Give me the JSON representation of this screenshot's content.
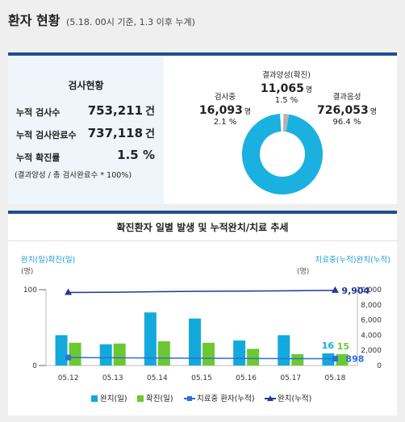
{
  "header": {
    "title": "환자 현황",
    "subtitle": "(5.18. 00시 기준, 1.3 이후 누계)"
  },
  "test_status": {
    "title": "검사현황",
    "rows": [
      {
        "label": "누적 검사수",
        "value": "753,211",
        "unit": "건"
      },
      {
        "label": "누적 검사완료수",
        "value": "737,118",
        "unit": "건"
      },
      {
        "label": "누적 확진률",
        "value": "1.5 %",
        "unit": ""
      }
    ],
    "note": "(결과양성 / 총 검사완료수 * 100%)"
  },
  "pie": {
    "colors": {
      "negative": "#1ab0e0",
      "testing": "#b3b3b3",
      "positive": "#ffffff"
    },
    "slices": [
      {
        "key": "testing",
        "label": "검사중",
        "value": "16,093",
        "unit": "명",
        "percent": 2.1,
        "percent_text": "2.1 %"
      },
      {
        "key": "positive",
        "label": "결과양성(확진)",
        "value": "11,065",
        "unit": "명",
        "percent": 1.5,
        "percent_text": "1.5 %"
      },
      {
        "key": "negative",
        "label": "결과음성",
        "value": "726,053",
        "unit": "명",
        "percent": 96.4,
        "percent_text": "96.4 %"
      }
    ]
  },
  "chart_data": {
    "type": "bar",
    "title": "확진환자 일별 발생 및 누적완치/치료 추세",
    "left_axis_label": "완치(일)확진(일)",
    "left_axis_unit": "(명)",
    "right_axis_label": "치료중(누적)완치(누적)",
    "right_axis_unit": "(명)",
    "categories": [
      "05.12",
      "05.13",
      "05.14",
      "05.15",
      "05.16",
      "05.17",
      "05.18"
    ],
    "left_ylim": [
      0,
      100
    ],
    "left_ticks": [
      "100",
      "0"
    ],
    "right_ylim": [
      0,
      10000
    ],
    "right_ticks": [
      "10,000",
      "8,000",
      "6,000",
      "4,000",
      "2,000",
      "0"
    ],
    "series": [
      {
        "name": "완치(일)",
        "type": "bar",
        "axis": "left",
        "color": "#14a9dc",
        "values": [
          40,
          28,
          70,
          62,
          33,
          40,
          16
        ]
      },
      {
        "name": "확진(일)",
        "type": "bar",
        "axis": "left",
        "color": "#6cc832",
        "values": [
          30,
          29,
          32,
          30,
          22,
          15,
          15
        ]
      },
      {
        "name": "치료중 환자(누적)",
        "type": "line",
        "axis": "right",
        "color": "#2d6ed8",
        "values": [
          1050,
          1025,
          990,
          960,
          935,
          910,
          898
        ]
      },
      {
        "name": "완치(누적)",
        "type": "line",
        "axis": "right",
        "color": "#1f3a93",
        "values": [
          9630,
          9660,
          9730,
          9790,
          9820,
          9860,
          9904
        ]
      }
    ],
    "data_labels": {
      "last_recovered_daily": "16",
      "last_confirmed_daily": "15",
      "last_under_treatment": "898",
      "last_recovered_cumulative": "9,904"
    },
    "legend_placement": "bottom"
  }
}
